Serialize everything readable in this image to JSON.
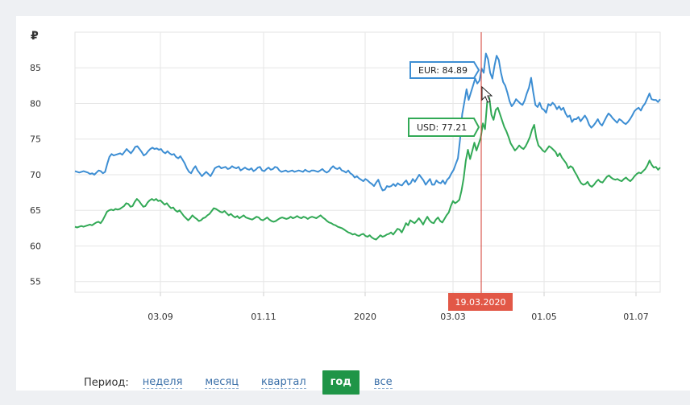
{
  "chart_data": {
    "type": "line",
    "ylabel": "₽",
    "ylim": [
      53.5,
      90
    ],
    "yticks": [
      55,
      60,
      65,
      70,
      75,
      80,
      85
    ],
    "x_labels": [
      "03.09",
      "01.11",
      "2020",
      "03.03",
      "01.05",
      "01.07"
    ],
    "grid": true,
    "series": [
      {
        "name": "EUR",
        "color": "#3d8ed3",
        "values": [
          70.5,
          70.4,
          70.3,
          70.4,
          70.5,
          70.4,
          70.3,
          70.1,
          70.2,
          70.0,
          70.3,
          70.6,
          70.5,
          70.2,
          70.4,
          71.5,
          72.5,
          72.9,
          72.7,
          72.8,
          72.9,
          73.0,
          72.8,
          73.2,
          73.6,
          73.3,
          73.0,
          73.4,
          73.9,
          74.0,
          73.6,
          73.2,
          72.7,
          72.9,
          73.3,
          73.6,
          73.8,
          73.6,
          73.7,
          73.5,
          73.6,
          73.2,
          73.0,
          73.3,
          73.0,
          72.8,
          72.9,
          72.5,
          72.3,
          72.6,
          72.1,
          71.6,
          70.9,
          70.4,
          70.2,
          70.8,
          71.2,
          70.6,
          70.2,
          69.8,
          70.1,
          70.4,
          70.1,
          69.8,
          70.3,
          70.9,
          71.1,
          71.2,
          70.9,
          71.0,
          71.1,
          70.8,
          70.9,
          71.2,
          71.0,
          70.9,
          71.1,
          70.6,
          70.8,
          71.0,
          70.8,
          70.7,
          70.9,
          70.5,
          70.7,
          71.0,
          71.1,
          70.6,
          70.5,
          70.8,
          71.0,
          70.7,
          70.8,
          71.1,
          71.0,
          70.6,
          70.4,
          70.5,
          70.6,
          70.4,
          70.5,
          70.6,
          70.4,
          70.5,
          70.6,
          70.5,
          70.4,
          70.7,
          70.5,
          70.4,
          70.6,
          70.6,
          70.5,
          70.4,
          70.6,
          70.8,
          70.5,
          70.3,
          70.5,
          70.9,
          71.2,
          70.9,
          70.8,
          71.0,
          70.6,
          70.5,
          70.3,
          70.6,
          70.2,
          70.0,
          69.6,
          69.8,
          69.5,
          69.3,
          69.1,
          69.4,
          69.2,
          68.9,
          68.7,
          68.4,
          68.9,
          69.3,
          68.4,
          67.8,
          67.9,
          68.4,
          68.3,
          68.4,
          68.7,
          68.4,
          68.8,
          68.6,
          68.5,
          68.9,
          69.2,
          68.6,
          68.8,
          69.4,
          69.0,
          69.5,
          70.0,
          69.6,
          69.2,
          68.6,
          69.0,
          69.4,
          68.6,
          68.6,
          69.2,
          68.9,
          68.8,
          69.2,
          68.7,
          69.3,
          69.6,
          70.2,
          70.7,
          71.5,
          72.3,
          75.0,
          78.5,
          80.2,
          82.0,
          80.5,
          81.5,
          82.5,
          83.5,
          82.8,
          83.2,
          84.89,
          84.3,
          87.0,
          86.2,
          84.3,
          83.5,
          85.3,
          86.7,
          86.1,
          84.3,
          83.0,
          82.5,
          81.5,
          80.3,
          79.6,
          80.0,
          80.6,
          80.3,
          80.0,
          79.8,
          80.4,
          81.4,
          82.2,
          83.6,
          81.6,
          79.8,
          79.5,
          80.1,
          79.3,
          79.1,
          78.7,
          79.9,
          79.7,
          80.1,
          79.8,
          79.2,
          79.6,
          79.1,
          79.4,
          78.6,
          78.1,
          78.3,
          77.4,
          77.8,
          77.8,
          78.1,
          77.5,
          77.9,
          78.3,
          77.8,
          77.0,
          76.6,
          76.9,
          77.3,
          77.8,
          77.2,
          76.9,
          77.5,
          78.1,
          78.6,
          78.3,
          77.9,
          77.6,
          77.3,
          77.8,
          77.6,
          77.3,
          77.1,
          77.4,
          77.8,
          78.3,
          78.9,
          79.2,
          79.4,
          79.0,
          79.6,
          80.0,
          80.7,
          81.4,
          80.6,
          80.5,
          80.5,
          80.2,
          80.6
        ]
      },
      {
        "name": "USD",
        "color": "#32a956",
        "values": [
          62.7,
          62.6,
          62.7,
          62.8,
          62.7,
          62.8,
          62.9,
          63.0,
          62.9,
          63.1,
          63.3,
          63.4,
          63.2,
          63.6,
          64.2,
          64.8,
          65.0,
          65.1,
          65.0,
          65.2,
          65.1,
          65.2,
          65.4,
          65.6,
          66.0,
          65.9,
          65.5,
          65.6,
          66.2,
          66.6,
          66.3,
          65.9,
          65.5,
          65.6,
          66.1,
          66.4,
          66.6,
          66.4,
          66.6,
          66.3,
          66.4,
          66.1,
          65.8,
          66.0,
          65.6,
          65.3,
          65.4,
          65.0,
          64.8,
          65.0,
          64.6,
          64.2,
          63.9,
          63.6,
          63.9,
          64.3,
          64.0,
          63.8,
          63.5,
          63.6,
          63.9,
          64.0,
          64.3,
          64.5,
          64.9,
          65.3,
          65.2,
          65.0,
          64.8,
          64.7,
          64.9,
          64.6,
          64.3,
          64.5,
          64.2,
          64.0,
          64.2,
          63.9,
          64.1,
          64.3,
          64.0,
          63.9,
          63.8,
          63.7,
          63.9,
          64.1,
          64.0,
          63.7,
          63.6,
          63.8,
          64.0,
          63.7,
          63.5,
          63.4,
          63.5,
          63.7,
          63.9,
          64.0,
          63.9,
          63.8,
          63.9,
          64.1,
          63.9,
          64.0,
          64.2,
          64.0,
          63.9,
          64.1,
          64.0,
          63.8,
          64.0,
          64.1,
          64.0,
          63.9,
          64.1,
          64.3,
          64.0,
          63.8,
          63.5,
          63.3,
          63.2,
          63.0,
          62.9,
          62.7,
          62.6,
          62.5,
          62.3,
          62.1,
          61.9,
          61.8,
          61.6,
          61.7,
          61.5,
          61.4,
          61.6,
          61.7,
          61.4,
          61.3,
          61.5,
          61.2,
          61.0,
          60.9,
          61.2,
          61.5,
          61.3,
          61.4,
          61.6,
          61.7,
          61.9,
          61.6,
          62.0,
          62.4,
          62.3,
          61.9,
          62.5,
          63.2,
          62.9,
          63.6,
          63.4,
          63.2,
          63.5,
          63.9,
          63.5,
          63.0,
          63.6,
          64.1,
          63.6,
          63.3,
          63.2,
          63.7,
          64.0,
          63.5,
          63.3,
          63.8,
          64.3,
          64.7,
          65.6,
          66.3,
          66.0,
          66.2,
          66.5,
          67.8,
          69.5,
          72.0,
          73.5,
          72.2,
          73.3,
          74.5,
          73.4,
          74.3,
          75.2,
          77.21,
          76.4,
          80.2,
          80.8,
          78.4,
          77.7,
          79.1,
          79.4,
          78.5,
          77.6,
          76.7,
          76.1,
          75.3,
          74.4,
          73.9,
          73.4,
          73.7,
          74.1,
          73.8,
          73.6,
          74.0,
          74.6,
          75.3,
          76.3,
          77.0,
          75.2,
          74.1,
          73.8,
          73.4,
          73.2,
          73.6,
          74.0,
          73.8,
          73.5,
          73.2,
          72.6,
          73.0,
          72.4,
          72.0,
          71.6,
          70.9,
          71.2,
          71.0,
          70.4,
          69.9,
          69.3,
          68.8,
          68.6,
          68.7,
          69.0,
          68.5,
          68.3,
          68.6,
          69.0,
          69.3,
          69.0,
          68.9,
          69.3,
          69.7,
          69.9,
          69.6,
          69.4,
          69.3,
          69.4,
          69.2,
          69.1,
          69.4,
          69.6,
          69.3,
          69.1,
          69.4,
          69.8,
          70.1,
          70.3,
          70.2,
          70.5,
          70.8,
          71.3,
          72.0,
          71.4,
          71.0,
          71.1,
          70.7,
          71.0
        ]
      }
    ]
  },
  "crosshair": {
    "date": "19.03.2020",
    "line_color": "#d33a2f",
    "badge_color": "#e25847"
  },
  "tooltips": {
    "eur": "EUR: 84.89",
    "usd": "USD: 77.21"
  },
  "period": {
    "label": "Период:",
    "options": [
      {
        "label": "неделя",
        "active": false
      },
      {
        "label": "месяц",
        "active": false
      },
      {
        "label": "квартал",
        "active": false
      },
      {
        "label": "год",
        "active": true
      },
      {
        "label": "все",
        "active": false
      }
    ]
  }
}
